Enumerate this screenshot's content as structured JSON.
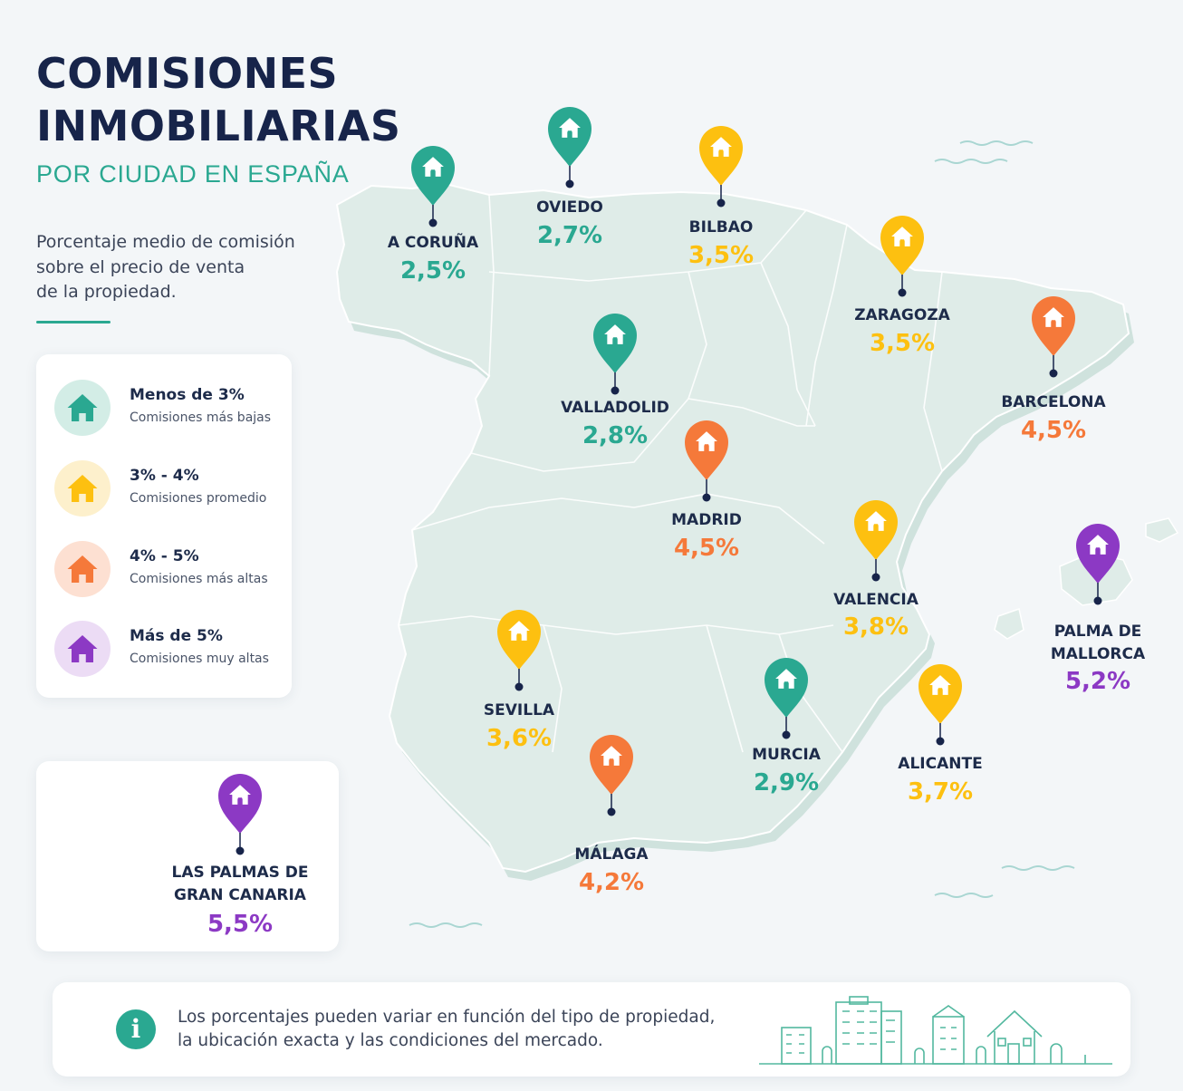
{
  "title": {
    "line1": "COMISIONES",
    "line2": "INMOBILIARIAS",
    "subtitle": "POR CIUDAD EN ESPAÑA"
  },
  "description": [
    "Porcentaje medio de comisión",
    "sobre el precio de venta",
    "de la propiedad."
  ],
  "colors": {
    "green": "#2aa891",
    "yellow": "#fdc010",
    "orange": "#f5793a",
    "purple": "#8c39c4",
    "navy": "#17244a",
    "land": "#dfece8"
  },
  "legend": [
    {
      "title": "Menos de 3%",
      "subtitle": "Comisiones más bajas",
      "color": "green"
    },
    {
      "title": "3% - 4%",
      "subtitle": "Comisiones promedio",
      "color": "yellow"
    },
    {
      "title": "4% - 5%",
      "subtitle": "Comisiones más altas",
      "color": "orange"
    },
    {
      "title": "Más de 5%",
      "subtitle": "Comisiones muy altas",
      "color": "purple"
    }
  ],
  "cities": [
    {
      "id": "a-coruna",
      "name": [
        "A CORUÑA"
      ],
      "value": "2,5%",
      "color": "green"
    },
    {
      "id": "oviedo",
      "name": [
        "OVIEDO"
      ],
      "value": "2,7%",
      "color": "green"
    },
    {
      "id": "bilbao",
      "name": [
        "BILBAO"
      ],
      "value": "3,5%",
      "color": "yellow"
    },
    {
      "id": "zaragoza",
      "name": [
        "ZARAGOZA"
      ],
      "value": "3,5%",
      "color": "yellow"
    },
    {
      "id": "barcelona",
      "name": [
        "BARCELONA"
      ],
      "value": "4,5%",
      "color": "orange"
    },
    {
      "id": "valladolid",
      "name": [
        "VALLADOLID"
      ],
      "value": "2,8%",
      "color": "green"
    },
    {
      "id": "madrid",
      "name": [
        "MADRID"
      ],
      "value": "4,5%",
      "color": "orange"
    },
    {
      "id": "valencia",
      "name": [
        "VALENCIA"
      ],
      "value": "3,8%",
      "color": "yellow"
    },
    {
      "id": "palma",
      "name": [
        "PALMA DE",
        "MALLORCA"
      ],
      "value": "5,2%",
      "color": "purple"
    },
    {
      "id": "sevilla",
      "name": [
        "SEVILLA"
      ],
      "value": "3,6%",
      "color": "yellow"
    },
    {
      "id": "murcia",
      "name": [
        "MURCIA"
      ],
      "value": "2,9%",
      "color": "green"
    },
    {
      "id": "alicante",
      "name": [
        "ALICANTE"
      ],
      "value": "3,7%",
      "color": "yellow"
    },
    {
      "id": "malaga",
      "name": [
        "MÁLAGA"
      ],
      "value": "4,2%",
      "color": "orange"
    },
    {
      "id": "las-palmas",
      "name": [
        "LAS PALMAS DE",
        "GRAN CANARIA"
      ],
      "value": "5,5%",
      "color": "purple"
    }
  ],
  "note": {
    "icon": "info-icon",
    "lines": [
      "Los porcentajes pueden variar en función del tipo de propiedad,",
      "la ubicación exacta y las condiciones del mercado."
    ]
  }
}
